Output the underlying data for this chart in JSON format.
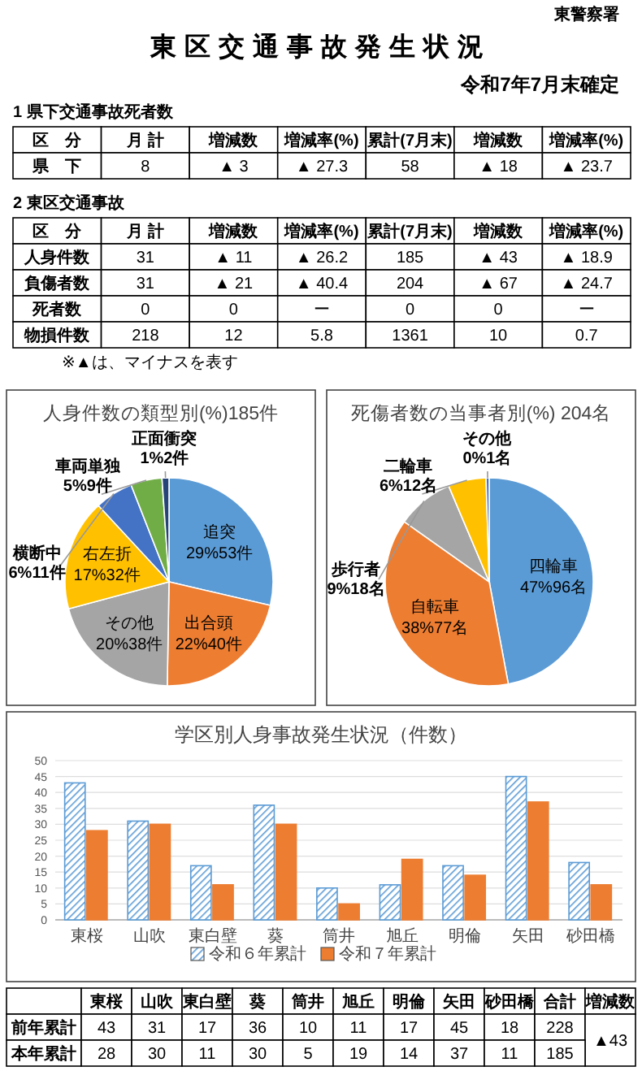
{
  "chart_data": [
    {
      "type": "other",
      "title": "東区交通事故発生状況",
      "subtitle": "令和7年7月末確定",
      "annotations": [
        "東警察署"
      ]
    },
    {
      "type": "other",
      "title": "1 県下交通事故死者数",
      "categories": [
        "区　分",
        "月 計",
        "増減数",
        "増減率(%)",
        "累計(7月末)",
        "増減数",
        "増減率(%)"
      ],
      "annotations": [
        "県　下",
        "8",
        "▲ 3",
        "▲ 27.3",
        "58",
        "▲ 18",
        "▲ 23.7"
      ]
    },
    {
      "type": "other",
      "title": "2 東区交通事故",
      "subtitle": "※▲は、マイナスを表す",
      "categories": [
        "区　分",
        "月 計",
        "増減数",
        "増減率(%)",
        "累計(7月末)",
        "増減数",
        "増減率(%)"
      ],
      "annotations": [
        "人身件数",
        "31",
        "▲ 11",
        "▲ 26.2",
        "185",
        "▲ 43",
        "▲ 18.9",
        "負傷者数",
        "31",
        "▲ 21",
        "▲ 40.4",
        "204",
        "▲ 67",
        "▲ 24.7",
        "死者数",
        "0",
        "0",
        "ー",
        "0",
        "0",
        "ー",
        "物損件数",
        "218",
        "12",
        "5.8",
        "1361",
        "10",
        "0.7"
      ]
    },
    {
      "type": "pie",
      "title": "人身件数の類型別(%)185件",
      "categories": [
        "追突",
        "出合頭",
        "その他",
        "右左折",
        "横断中",
        "車両単独",
        "正面衝突"
      ],
      "values": [
        53,
        40,
        38,
        32,
        11,
        9,
        2
      ],
      "value_labels": [
        "29%53件",
        "22%40件",
        "20%38件",
        "17%32件",
        "6%11件",
        "5%9件",
        "1%2件"
      ],
      "colors": [
        "#5b9bd5",
        "#ed7d31",
        "#a5a5a5",
        "#ffc000",
        "#4472c4",
        "#70ad47",
        "#264478"
      ]
    },
    {
      "type": "pie",
      "title": "死傷者数の当事者別(%) 204名",
      "categories": [
        "四輪車",
        "自転車",
        "歩行者",
        "二輪車",
        "その他"
      ],
      "values": [
        96,
        77,
        18,
        12,
        1
      ],
      "value_labels": [
        "47%96名",
        "38%77名",
        "9%18名",
        "6%12名",
        "0%1名"
      ],
      "colors": [
        "#5b9bd5",
        "#ed7d31",
        "#a5a5a5",
        "#ffc000",
        "#4472c4"
      ]
    },
    {
      "type": "bar",
      "title": "学区別人身事故発生状況（件数）",
      "categories": [
        "東桜",
        "山吹",
        "東白壁",
        "葵",
        "筒井",
        "旭丘",
        "明倫",
        "矢田",
        "砂田橋"
      ],
      "series": [
        {
          "name": "令和６年累計",
          "color": "#5b9bd5",
          "values": [
            43,
            31,
            17,
            36,
            10,
            11,
            17,
            45,
            18
          ]
        },
        {
          "name": "令和７年累計",
          "color": "#ed7d31",
          "values": [
            28,
            30,
            11,
            30,
            5,
            19,
            14,
            37,
            11
          ]
        }
      ],
      "ylim": [
        0,
        50
      ],
      "yticks": [
        0,
        5,
        10,
        15,
        20,
        25,
        30,
        35,
        40,
        45,
        50
      ],
      "grid": "y",
      "legend": "bottom"
    },
    {
      "type": "other",
      "categories": [
        null,
        "東桜",
        "山吹",
        "東白壁",
        "葵",
        "筒井",
        "旭丘",
        "明倫",
        "矢田",
        "砂田橋",
        "合計",
        "増減数"
      ],
      "annotations": [
        "前年累計",
        "43",
        "31",
        "17",
        "36",
        "10",
        "11",
        "17",
        "45",
        "18",
        "228",
        "▲43",
        "本年累計",
        "28",
        "30",
        "11",
        "30",
        "5",
        "19",
        "14",
        "37",
        "11",
        "185"
      ]
    }
  ]
}
